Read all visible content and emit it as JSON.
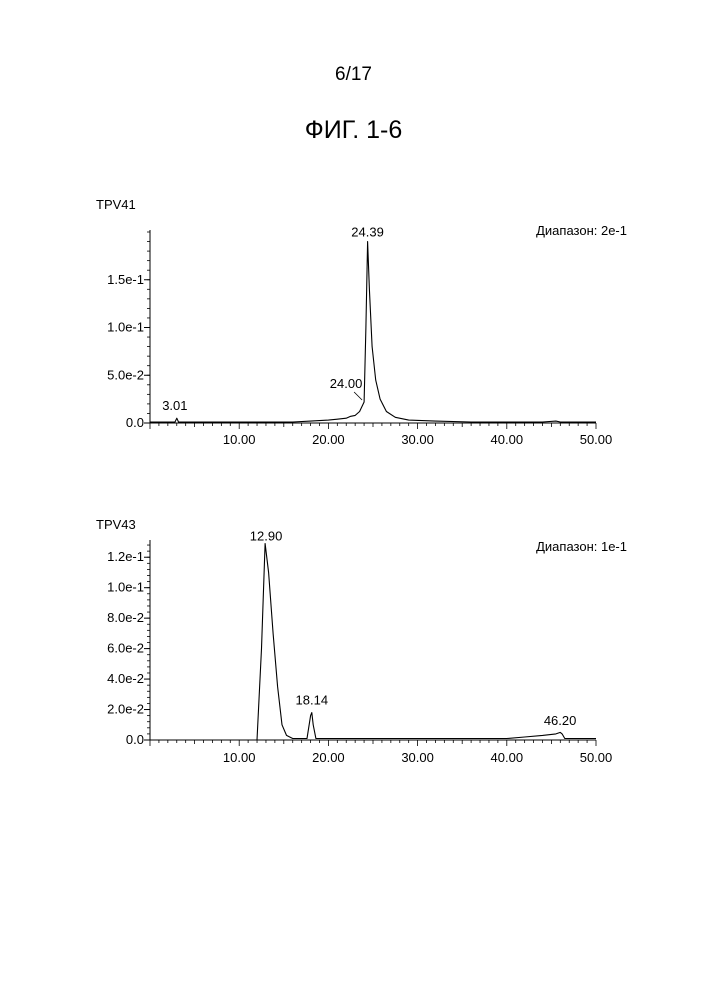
{
  "page": {
    "number": "6/17",
    "figure_title": "ФИГ. 1-6"
  },
  "chart_data": [
    {
      "type": "line",
      "title": "TPV41",
      "range_label": "Диапазон: 2e-1",
      "xlim": [
        0,
        50
      ],
      "ylim": [
        0,
        0.2
      ],
      "x_ticks": [
        "10.00",
        "20.00",
        "30.00",
        "40.00",
        "50.00"
      ],
      "x_tick_values": [
        10,
        20,
        30,
        40,
        50
      ],
      "y_ticks": [
        "0.0",
        "5.0e-2",
        "1.0e-1",
        "1.5e-1"
      ],
      "y_tick_values": [
        0,
        0.05,
        0.1,
        0.15
      ],
      "peak_labels": [
        {
          "text": "3.01",
          "x": 3.01,
          "y": 0.003
        },
        {
          "text": "24.00",
          "x": 24.0,
          "y": 0.022
        },
        {
          "text": "24.39",
          "x": 24.39,
          "y": 0.19
        }
      ],
      "series": [
        {
          "x": [
            0,
            2,
            2.8,
            3.01,
            3.2,
            4,
            8,
            12,
            16,
            18,
            20,
            21,
            22,
            22.5,
            23,
            23.5,
            24.0,
            24.2,
            24.39,
            24.6,
            24.9,
            25.3,
            25.8,
            26.5,
            27.5,
            29,
            32,
            36,
            40,
            44,
            45.5,
            46,
            46.5,
            50
          ],
          "y": [
            0.001,
            0.001,
            0.001,
            0.005,
            0.001,
            0.001,
            0.001,
            0.001,
            0.001,
            0.002,
            0.003,
            0.004,
            0.005,
            0.007,
            0.008,
            0.012,
            0.022,
            0.1,
            0.19,
            0.14,
            0.08,
            0.045,
            0.025,
            0.012,
            0.006,
            0.003,
            0.002,
            0.001,
            0.001,
            0.001,
            0.002,
            0.001,
            0.001,
            0.001
          ]
        }
      ]
    },
    {
      "type": "line",
      "title": "TPV43",
      "range_label": "Диапазон: 1e-1",
      "xlim": [
        0,
        50
      ],
      "ylim": [
        0,
        0.13
      ],
      "x_ticks": [
        "10.00",
        "20.00",
        "30.00",
        "40.00",
        "50.00"
      ],
      "x_tick_values": [
        10,
        20,
        30,
        40,
        50
      ],
      "y_ticks": [
        "0.0",
        "2.0e-2",
        "4.0e-2",
        "6.0e-2",
        "8.0e-2",
        "1.0e-1",
        "1.2e-1"
      ],
      "y_tick_values": [
        0,
        0.02,
        0.04,
        0.06,
        0.08,
        0.1,
        0.12
      ],
      "peak_labels": [
        {
          "text": "12.90",
          "x": 12.9,
          "y": 0.129
        },
        {
          "text": "18.14",
          "x": 18.14,
          "y": 0.018
        },
        {
          "text": "46.20",
          "x": 46.2,
          "y": 0.004
        }
      ],
      "series": [
        {
          "x": [
            0,
            5,
            10,
            12.0,
            12.5,
            12.9,
            13.3,
            13.8,
            14.3,
            14.8,
            15.3,
            16,
            17.6,
            18.0,
            18.14,
            18.3,
            18.6,
            20,
            25,
            30,
            35,
            40,
            42,
            44,
            45.5,
            46.0,
            46.2,
            46.5,
            50
          ],
          "y": [
            0.0,
            0.0,
            0.0,
            0.0,
            0.06,
            0.129,
            0.11,
            0.07,
            0.035,
            0.01,
            0.003,
            0.001,
            0.001,
            0.016,
            0.018,
            0.01,
            0.001,
            0.001,
            0.001,
            0.001,
            0.001,
            0.001,
            0.002,
            0.003,
            0.004,
            0.005,
            0.004,
            0.001,
            0.001
          ]
        }
      ]
    }
  ]
}
